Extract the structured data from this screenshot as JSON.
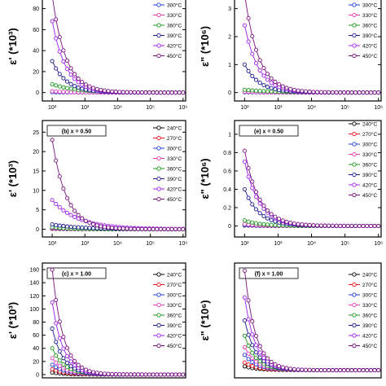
{
  "chart_data": [
    {
      "id": "a",
      "label": "",
      "type": "line",
      "scale_x": "log",
      "ylabel": "ε' (*10³)",
      "xlim": [
        50,
        1200000
      ],
      "ylim": [
        -8,
        96
      ],
      "yticks": [
        0,
        20,
        40,
        60,
        80
      ],
      "xticks": [
        {
          "v": 100,
          "t": "10²"
        },
        {
          "v": 1000,
          "t": "10³"
        },
        {
          "v": 10000,
          "t": "10⁴"
        },
        {
          "v": 100000,
          "t": "10⁵"
        },
        {
          "v": 1000000,
          "t": "10⁶"
        }
      ],
      "legend": [
        "300°C",
        "330°C",
        "360°C",
        "390°C",
        "420°C",
        "450°C"
      ],
      "series": [
        {
          "name": "300°C",
          "y0": 0.4,
          "decay": 0.8
        },
        {
          "name": "330°C",
          "y0": 1.2,
          "decay": 0.8
        },
        {
          "name": "360°C",
          "y0": 8,
          "decay": 0.6
        },
        {
          "name": "390°C",
          "y0": 30,
          "decay": 1.0
        },
        {
          "name": "420°C",
          "y0": 68,
          "decay": 1.05
        },
        {
          "name": "450°C",
          "y0": 92,
          "decay": 1.05
        }
      ]
    },
    {
      "id": "d",
      "label": "",
      "type": "line",
      "scale_x": "log",
      "ylabel": "ε\" (*10⁶)",
      "xlim": [
        50,
        1200000
      ],
      "ylim": [
        -0.3,
        3.6
      ],
      "yticks": [
        0,
        1,
        2,
        3
      ],
      "xticks": [
        {
          "v": 100,
          "t": "10²"
        },
        {
          "v": 1000,
          "t": "10³"
        },
        {
          "v": 10000,
          "t": "10⁴"
        },
        {
          "v": 100000,
          "t": "10⁵"
        },
        {
          "v": 1000000,
          "t": "10⁶"
        }
      ],
      "legend": [
        "300°C",
        "330°C",
        "360°C",
        "390°C",
        "420°C",
        "450°C"
      ],
      "series": [
        {
          "name": "300°C",
          "y0": 0.01,
          "decay": 0.9
        },
        {
          "name": "330°C",
          "y0": 0.03,
          "decay": 0.9
        },
        {
          "name": "360°C",
          "y0": 0.1,
          "decay": 0.5
        },
        {
          "name": "390°C",
          "y0": 1.0,
          "decay": 1.0
        },
        {
          "name": "420°C",
          "y0": 2.4,
          "decay": 1.05
        },
        {
          "name": "450°C",
          "y0": 3.5,
          "decay": 1.05
        }
      ]
    },
    {
      "id": "b",
      "label": "(b) x = 0.50",
      "type": "line",
      "scale_x": "log",
      "ylabel": "ε' (*10³)",
      "xlim": [
        50,
        1200000
      ],
      "ylim": [
        -2,
        28
      ],
      "yticks": [
        0,
        5,
        10,
        15,
        20,
        25
      ],
      "xticks": [
        {
          "v": 100,
          "t": "10²"
        },
        {
          "v": 1000,
          "t": "10³"
        },
        {
          "v": 10000,
          "t": "10⁴"
        },
        {
          "v": 100000,
          "t": "10⁵"
        },
        {
          "v": 1000000,
          "t": "10⁶"
        }
      ],
      "legend": [
        "240°C",
        "270°C",
        "300°C",
        "330°C",
        "360°C",
        "390°C",
        "420°C",
        "450°C"
      ],
      "series": [
        {
          "name": "240°C",
          "y0": 0.1,
          "decay": 0.8
        },
        {
          "name": "270°C",
          "y0": 0.15,
          "decay": 0.8
        },
        {
          "name": "300°C",
          "y0": 0.2,
          "decay": 0.8
        },
        {
          "name": "330°C",
          "y0": 0.3,
          "decay": 0.8
        },
        {
          "name": "360°C",
          "y0": 0.5,
          "decay": 0.8
        },
        {
          "name": "390°C",
          "y0": 1.2,
          "decay": 0.5
        },
        {
          "name": "420°C",
          "y0": 7.5,
          "decay": 0.55
        },
        {
          "name": "450°C",
          "y0": 23,
          "decay": 1.0
        }
      ]
    },
    {
      "id": "e",
      "label": "(e) x = 0.50",
      "type": "line",
      "scale_x": "log",
      "ylabel": "ε\" (*10⁶)",
      "xlim": [
        50,
        1200000
      ],
      "ylim": [
        -0.12,
        1.15
      ],
      "yticks": [
        0.0,
        0.2,
        0.4,
        0.6,
        0.8,
        1.0
      ],
      "xticks": [
        {
          "v": 100,
          "t": "10²"
        },
        {
          "v": 1000,
          "t": "10³"
        },
        {
          "v": 10000,
          "t": "10⁴"
        },
        {
          "v": 100000,
          "t": "10⁵"
        },
        {
          "v": 1000000,
          "t": "10⁶"
        }
      ],
      "legend": [
        "240°C",
        "270°C",
        "300°C",
        "330°C",
        "360°C",
        "390°C",
        "420°C",
        "450°C"
      ],
      "series": [
        {
          "name": "240°C",
          "y0": 0.005,
          "decay": 0.9
        },
        {
          "name": "270°C",
          "y0": 0.008,
          "decay": 0.9
        },
        {
          "name": "300°C",
          "y0": 0.01,
          "decay": 0.9
        },
        {
          "name": "330°C",
          "y0": 0.02,
          "decay": 0.9
        },
        {
          "name": "360°C",
          "y0": 0.06,
          "decay": 0.9
        },
        {
          "name": "390°C",
          "y0": 0.4,
          "decay": 1.0
        },
        {
          "name": "420°C",
          "y0": 0.7,
          "decay": 1.0
        },
        {
          "name": "450°C",
          "y0": 0.82,
          "decay": 1.0
        }
      ]
    },
    {
      "id": "c",
      "label": "(c) x = 1.00",
      "type": "line",
      "scale_x": "log",
      "ylabel": "ε' (*10³)",
      "xlim": [
        50,
        1200000
      ],
      "ylim": [
        -5,
        170
      ],
      "yticks": [
        0,
        20,
        40,
        60,
        80,
        100,
        120,
        140,
        160
      ],
      "xticks": [],
      "legend": [
        "240°C",
        "270°C",
        "300°C",
        "330°C",
        "360°C",
        "390°C",
        "420°C",
        "450°C"
      ],
      "series": [
        {
          "name": "240°C",
          "y0": 3,
          "decay": 1.0
        },
        {
          "name": "270°C",
          "y0": 8,
          "decay": 1.1
        },
        {
          "name": "300°C",
          "y0": 15,
          "decay": 1.1
        },
        {
          "name": "330°C",
          "y0": 25,
          "decay": 1.2
        },
        {
          "name": "360°C",
          "y0": 40,
          "decay": 1.2
        },
        {
          "name": "390°C",
          "y0": 70,
          "decay": 1.3
        },
        {
          "name": "420°C",
          "y0": 110,
          "decay": 1.3
        },
        {
          "name": "450°C",
          "y0": 160,
          "decay": 1.3
        }
      ]
    },
    {
      "id": "f",
      "label": "(f) x = 1.00",
      "type": "line",
      "scale_x": "log",
      "ylabel": "ε\" (*10⁶)",
      "xlim": [
        50,
        1200000
      ],
      "ylim": [
        -0.1,
        1.4
      ],
      "yticks": [],
      "xticks": [],
      "legend": [
        "240°C",
        "270°C",
        "300°C",
        "330°C",
        "360°C",
        "390°C",
        "420°C",
        "450°C"
      ],
      "series": [
        {
          "name": "240°C",
          "y0": 0.05,
          "decay": 1.1
        },
        {
          "name": "270°C",
          "y0": 0.1,
          "decay": 1.2
        },
        {
          "name": "300°C",
          "y0": 0.2,
          "decay": 1.2
        },
        {
          "name": "330°C",
          "y0": 0.3,
          "decay": 1.25
        },
        {
          "name": "360°C",
          "y0": 0.45,
          "decay": 1.3
        },
        {
          "name": "390°C",
          "y0": 0.65,
          "decay": 1.3
        },
        {
          "name": "420°C",
          "y0": 0.95,
          "decay": 1.35
        },
        {
          "name": "450°C",
          "y0": 1.3,
          "decay": 1.35
        }
      ]
    }
  ],
  "colors": {
    "240°C": "#000000",
    "270°C": "#e8141c",
    "300°C": "#1f3fd8",
    "330°C": "#e33fbf",
    "360°C": "#1b9a1b",
    "390°C": "#1a1a8c",
    "420°C": "#a020f0",
    "450°C": "#7a1080"
  }
}
